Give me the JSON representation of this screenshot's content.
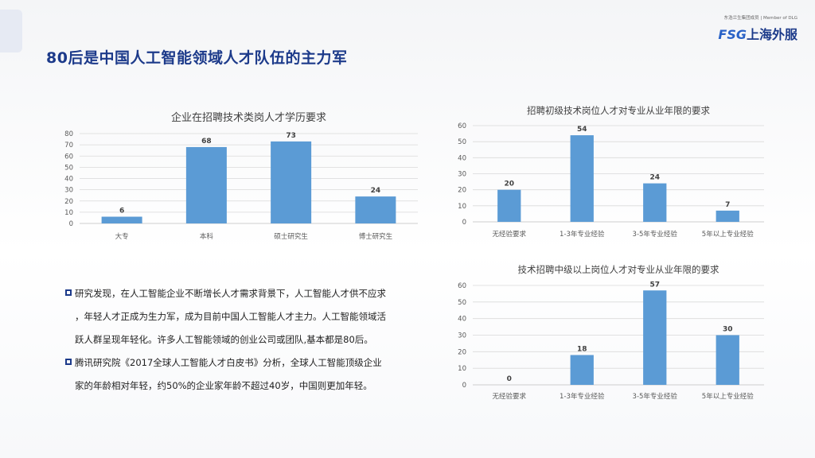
{
  "header": {
    "title": "80后是中国人工智能领域人才队伍的主力军",
    "logo": {
      "member": "东浩兰生集团成员 | Member of DLG",
      "brand_latin": "FSG",
      "brand_cn": "上海外服"
    }
  },
  "colors": {
    "bar": "#5b9bd5",
    "title": "#1c3a8a",
    "grid": "#d9d9d9",
    "axis_text": "#595959"
  },
  "bullets": [
    {
      "icon": "square-bullet-icon",
      "lines": [
        "研究发现，在人工智能企业不断增长人才需求背景下，人工智能人才供不应求",
        "，年轻人才正成为生力军，成为目前中国人工智能人才主力。人工智能领域活",
        "跃人群呈现年轻化。许多人工智能领域的创业公司或团队,基本都是80后。"
      ]
    },
    {
      "icon": "square-bullet-icon",
      "lines": [
        "腾讯研究院《2017全球人工智能人才白皮书》分析，全球人工智能顶级企业",
        "家的年龄相对年轻，约50%的企业家年龄不超过40岁，中国则更加年轻。"
      ]
    }
  ],
  "chart_data": [
    {
      "type": "bar",
      "title": "企业在招聘技术类岗人才学历要求",
      "categories": [
        "大专",
        "本科",
        "硕士研究生",
        "博士研究生"
      ],
      "values": [
        6,
        68,
        73,
        24
      ],
      "ylim": [
        0,
        80
      ],
      "yticks": [
        0,
        10,
        20,
        30,
        40,
        50,
        60,
        70,
        80
      ],
      "grid": true,
      "legend": "none"
    },
    {
      "type": "bar",
      "title": "招聘初级技术岗位人才对专业从业年限的要求",
      "categories": [
        "无经验要求",
        "1-3年专业经验",
        "3-5年专业经验",
        "5年以上专业经验"
      ],
      "values": [
        20,
        54,
        24,
        7
      ],
      "ylim": [
        0,
        60
      ],
      "yticks": [
        0,
        10,
        20,
        30,
        40,
        50,
        60
      ],
      "grid": true,
      "legend": "none"
    },
    {
      "type": "bar",
      "title": "技术招聘中级以上岗位人才对专业从业年限的要求",
      "categories": [
        "无经验要求",
        "1-3年专业经验",
        "3-5年专业经验",
        "5年以上专业经验"
      ],
      "values": [
        0,
        18,
        57,
        30
      ],
      "ylim": [
        0,
        60
      ],
      "yticks": [
        0,
        10,
        20,
        30,
        40,
        50,
        60
      ],
      "grid": true,
      "legend": "none"
    }
  ]
}
